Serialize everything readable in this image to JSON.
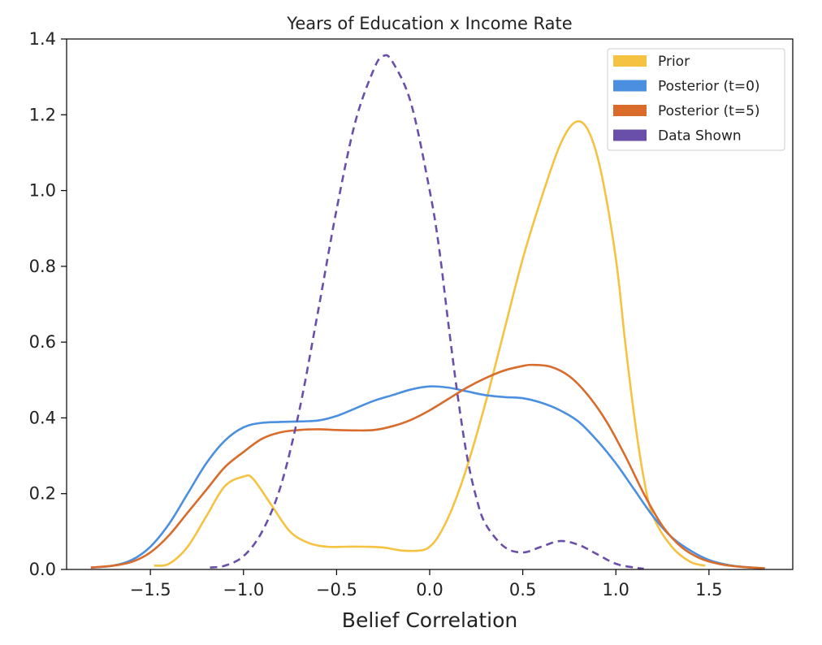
{
  "chart_data": {
    "type": "line",
    "title": "Years of Education x Income Rate",
    "xlabel": "Belief Correlation",
    "ylabel": "",
    "xlim": [
      -1.95,
      1.95
    ],
    "ylim": [
      0,
      1.4
    ],
    "xticks": [
      -1.5,
      -1.0,
      -0.5,
      0.0,
      0.5,
      1.0,
      1.5
    ],
    "xtick_labels": [
      "−1.5",
      "−1.0",
      "−0.5",
      "0.0",
      "0.5",
      "1.0",
      "1.5"
    ],
    "yticks": [
      0.0,
      0.2,
      0.4,
      0.6,
      0.8,
      1.0,
      1.2,
      1.4
    ],
    "ytick_labels": [
      "0.0",
      "0.2",
      "0.4",
      "0.6",
      "0.8",
      "1.0",
      "1.2",
      "1.4"
    ],
    "grid": false,
    "legend_position": "top-right",
    "series": [
      {
        "name": "Prior",
        "color": "#f5c242",
        "dash": "solid",
        "points": [
          [
            -1.48,
            0.01
          ],
          [
            -1.4,
            0.015
          ],
          [
            -1.3,
            0.06
          ],
          [
            -1.2,
            0.14
          ],
          [
            -1.1,
            0.22
          ],
          [
            -1.0,
            0.245
          ],
          [
            -0.95,
            0.24
          ],
          [
            -0.85,
            0.17
          ],
          [
            -0.75,
            0.1
          ],
          [
            -0.65,
            0.07
          ],
          [
            -0.55,
            0.06
          ],
          [
            -0.45,
            0.06
          ],
          [
            -0.35,
            0.06
          ],
          [
            -0.25,
            0.058
          ],
          [
            -0.15,
            0.05
          ],
          [
            -0.05,
            0.05
          ],
          [
            0.0,
            0.06
          ],
          [
            0.05,
            0.09
          ],
          [
            0.12,
            0.16
          ],
          [
            0.2,
            0.27
          ],
          [
            0.3,
            0.44
          ],
          [
            0.4,
            0.63
          ],
          [
            0.5,
            0.82
          ],
          [
            0.6,
            0.98
          ],
          [
            0.7,
            1.12
          ],
          [
            0.78,
            1.18
          ],
          [
            0.85,
            1.16
          ],
          [
            0.92,
            1.05
          ],
          [
            1.0,
            0.82
          ],
          [
            1.05,
            0.6
          ],
          [
            1.1,
            0.4
          ],
          [
            1.15,
            0.24
          ],
          [
            1.2,
            0.14
          ],
          [
            1.3,
            0.06
          ],
          [
            1.4,
            0.02
          ],
          [
            1.48,
            0.01
          ]
        ]
      },
      {
        "name": "Posterior (t=0)",
        "color": "#4a8fe0",
        "dash": "solid",
        "points": [
          [
            -1.82,
            0.005
          ],
          [
            -1.7,
            0.01
          ],
          [
            -1.6,
            0.025
          ],
          [
            -1.5,
            0.06
          ],
          [
            -1.4,
            0.12
          ],
          [
            -1.3,
            0.2
          ],
          [
            -1.2,
            0.28
          ],
          [
            -1.1,
            0.34
          ],
          [
            -1.0,
            0.375
          ],
          [
            -0.9,
            0.387
          ],
          [
            -0.75,
            0.39
          ],
          [
            -0.6,
            0.393
          ],
          [
            -0.5,
            0.405
          ],
          [
            -0.4,
            0.425
          ],
          [
            -0.3,
            0.445
          ],
          [
            -0.2,
            0.46
          ],
          [
            -0.1,
            0.475
          ],
          [
            0.0,
            0.483
          ],
          [
            0.1,
            0.48
          ],
          [
            0.2,
            0.47
          ],
          [
            0.3,
            0.46
          ],
          [
            0.4,
            0.455
          ],
          [
            0.5,
            0.452
          ],
          [
            0.6,
            0.44
          ],
          [
            0.7,
            0.42
          ],
          [
            0.8,
            0.39
          ],
          [
            0.9,
            0.34
          ],
          [
            1.0,
            0.28
          ],
          [
            1.1,
            0.21
          ],
          [
            1.2,
            0.14
          ],
          [
            1.3,
            0.085
          ],
          [
            1.4,
            0.05
          ],
          [
            1.5,
            0.025
          ],
          [
            1.6,
            0.012
          ],
          [
            1.7,
            0.006
          ],
          [
            1.8,
            0.003
          ]
        ]
      },
      {
        "name": "Posterior (t=5)",
        "color": "#d96b2b",
        "dash": "solid",
        "points": [
          [
            -1.82,
            0.005
          ],
          [
            -1.7,
            0.01
          ],
          [
            -1.6,
            0.02
          ],
          [
            -1.5,
            0.045
          ],
          [
            -1.4,
            0.09
          ],
          [
            -1.3,
            0.15
          ],
          [
            -1.2,
            0.21
          ],
          [
            -1.1,
            0.27
          ],
          [
            -1.0,
            0.31
          ],
          [
            -0.9,
            0.345
          ],
          [
            -0.8,
            0.362
          ],
          [
            -0.7,
            0.368
          ],
          [
            -0.6,
            0.37
          ],
          [
            -0.5,
            0.368
          ],
          [
            -0.4,
            0.367
          ],
          [
            -0.3,
            0.368
          ],
          [
            -0.2,
            0.378
          ],
          [
            -0.1,
            0.395
          ],
          [
            0.0,
            0.42
          ],
          [
            0.1,
            0.45
          ],
          [
            0.2,
            0.48
          ],
          [
            0.3,
            0.505
          ],
          [
            0.4,
            0.525
          ],
          [
            0.5,
            0.537
          ],
          [
            0.55,
            0.54
          ],
          [
            0.65,
            0.535
          ],
          [
            0.75,
            0.51
          ],
          [
            0.85,
            0.46
          ],
          [
            0.95,
            0.39
          ],
          [
            1.05,
            0.3
          ],
          [
            1.15,
            0.2
          ],
          [
            1.25,
            0.115
          ],
          [
            1.35,
            0.06
          ],
          [
            1.45,
            0.03
          ],
          [
            1.55,
            0.015
          ],
          [
            1.65,
            0.008
          ],
          [
            1.8,
            0.003
          ]
        ]
      },
      {
        "name": "Data Shown",
        "color": "#6a4faa",
        "dash": "dashed",
        "points": [
          [
            -1.18,
            0.005
          ],
          [
            -1.1,
            0.01
          ],
          [
            -1.0,
            0.035
          ],
          [
            -0.9,
            0.1
          ],
          [
            -0.8,
            0.22
          ],
          [
            -0.7,
            0.42
          ],
          [
            -0.6,
            0.68
          ],
          [
            -0.5,
            0.95
          ],
          [
            -0.4,
            1.18
          ],
          [
            -0.3,
            1.32
          ],
          [
            -0.25,
            1.355
          ],
          [
            -0.2,
            1.34
          ],
          [
            -0.1,
            1.23
          ],
          [
            0.0,
            1.0
          ],
          [
            0.05,
            0.85
          ],
          [
            0.1,
            0.65
          ],
          [
            0.15,
            0.46
          ],
          [
            0.2,
            0.3
          ],
          [
            0.25,
            0.19
          ],
          [
            0.3,
            0.12
          ],
          [
            0.4,
            0.06
          ],
          [
            0.5,
            0.045
          ],
          [
            0.6,
            0.06
          ],
          [
            0.7,
            0.075
          ],
          [
            0.8,
            0.065
          ],
          [
            0.9,
            0.04
          ],
          [
            1.0,
            0.015
          ],
          [
            1.1,
            0.005
          ],
          [
            1.15,
            0.002
          ]
        ]
      }
    ]
  }
}
